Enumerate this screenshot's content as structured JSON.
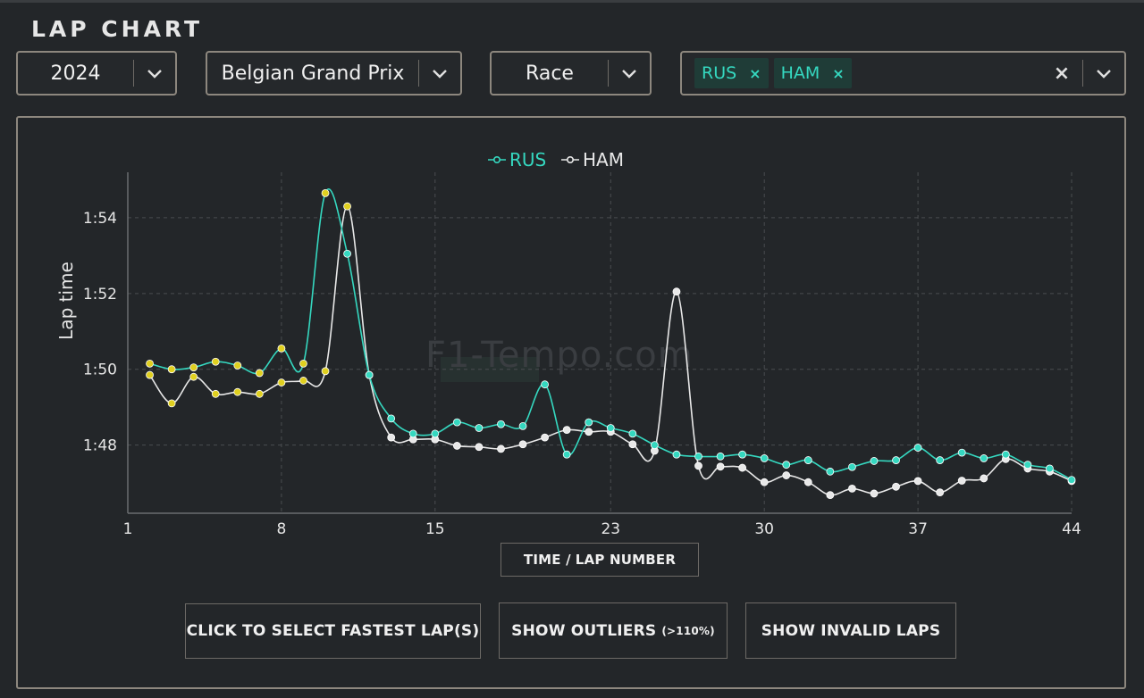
{
  "title": "LAP CHART",
  "filters": {
    "year": "2024",
    "event": "Belgian Grand Prix",
    "session": "Race",
    "drivers": [
      "RUS",
      "HAM"
    ],
    "clear_symbol": "×"
  },
  "watermark": "F1-Tempo.com",
  "x_axis_toggle": {
    "left": "TIME /",
    "right": "LAP NUMBER"
  },
  "buttons": {
    "fastest": "CLICK TO SELECT FASTEST LAP(S)",
    "outliers": "SHOW OUTLIERS",
    "outliers_note": "(>110%)",
    "invalid": "SHOW INVALID LAPS"
  },
  "colors": {
    "rus": "#35d8c0",
    "ham": "#e8e8e8",
    "highlight": "#e0d020",
    "accent_bg": "#1f3c37"
  },
  "chart_data": {
    "type": "line",
    "ylabel": "Lap time",
    "xlabel": "",
    "x_ticks": [
      "1",
      "8",
      "15",
      "23",
      "30",
      "37",
      "44"
    ],
    "y_ticks": [
      "1:48",
      "1:50",
      "1:52",
      "1:54"
    ],
    "xlim": [
      1,
      44
    ],
    "ylim_seconds": [
      106.2,
      115.2
    ],
    "legend_position": "top-center",
    "grid": true,
    "series": [
      {
        "name": "RUS",
        "x": [
          2,
          3,
          4,
          5,
          6,
          7,
          8,
          9,
          10,
          11,
          12,
          13,
          14,
          15,
          16,
          17,
          18,
          19,
          20,
          21,
          22,
          23,
          24,
          25,
          26,
          27,
          28,
          29,
          30,
          31,
          32,
          33,
          34,
          35,
          36,
          37,
          38,
          39,
          40,
          41,
          42,
          43,
          44
        ],
        "y": [
          110.15,
          110.0,
          110.05,
          110.2,
          110.1,
          109.9,
          110.55,
          110.15,
          114.65,
          113.05,
          109.85,
          108.7,
          108.3,
          108.3,
          108.6,
          108.45,
          108.55,
          108.5,
          109.6,
          107.75,
          108.6,
          108.45,
          108.3,
          108.0,
          107.75,
          107.7,
          107.7,
          107.75,
          107.65,
          107.48,
          107.6,
          107.3,
          107.42,
          107.58,
          107.6,
          107.93,
          107.6,
          107.8,
          107.65,
          107.75,
          107.48,
          107.38,
          107.08
        ],
        "highlighted_laps": [
          2,
          3,
          4,
          5,
          6,
          7,
          8,
          9,
          10
        ]
      },
      {
        "name": "HAM",
        "x": [
          2,
          3,
          4,
          5,
          6,
          7,
          8,
          9,
          10,
          11,
          12,
          13,
          14,
          15,
          16,
          17,
          18,
          19,
          20,
          21,
          22,
          23,
          24,
          25,
          26,
          27,
          28,
          29,
          30,
          31,
          32,
          33,
          34,
          35,
          36,
          37,
          38,
          39,
          40,
          41,
          42,
          43,
          44
        ],
        "y": [
          109.85,
          109.1,
          109.8,
          109.35,
          109.4,
          109.35,
          109.65,
          109.7,
          109.95,
          114.3,
          109.85,
          108.2,
          108.15,
          108.15,
          107.98,
          107.95,
          107.9,
          108.02,
          108.2,
          108.4,
          108.35,
          108.35,
          108.02,
          107.85,
          112.05,
          107.45,
          107.43,
          107.4,
          107.02,
          107.2,
          107.02,
          106.68,
          106.85,
          106.72,
          106.9,
          107.05,
          106.75,
          107.06,
          107.12,
          107.63,
          107.38,
          107.3,
          107.05
        ],
        "highlighted_laps": [
          2,
          3,
          4,
          5,
          6,
          7,
          8,
          9,
          10,
          11
        ]
      }
    ]
  }
}
